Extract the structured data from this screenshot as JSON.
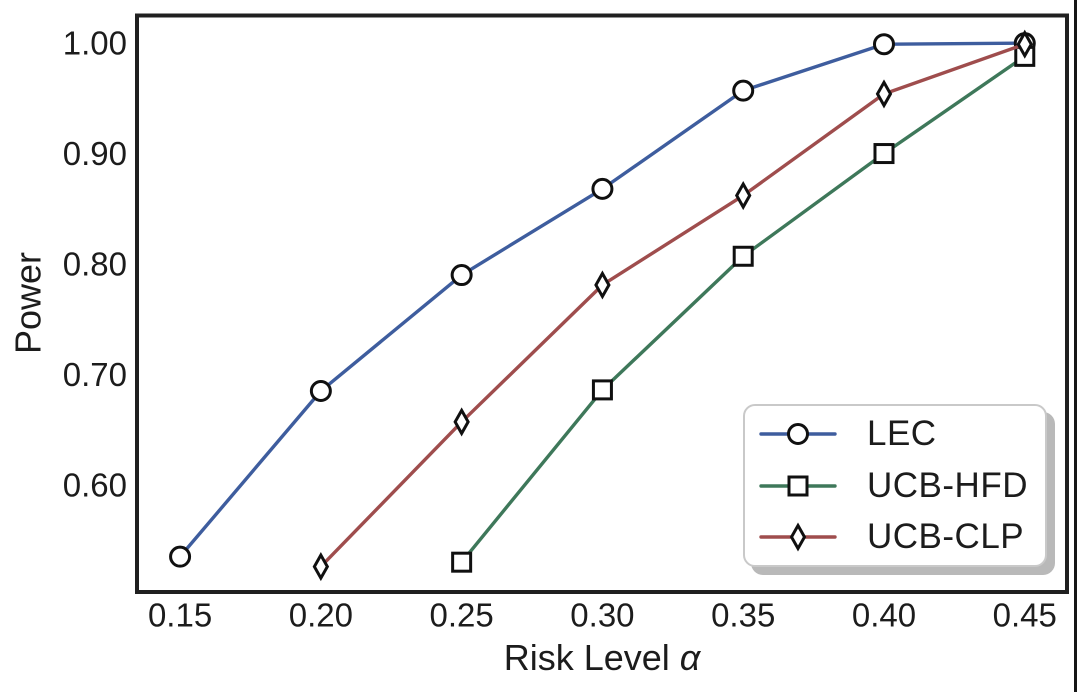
{
  "figure": {
    "background": "#ffffff",
    "frame_color": "#202020",
    "text_color": "#1c1c1c",
    "artifact_line_color": "#161616"
  },
  "chart_data": {
    "type": "line",
    "title": "",
    "xlabel": "Risk Level α",
    "xlabel_text": "Risk Level ",
    "xlabel_symbol": "α",
    "ylabel": "Power",
    "xlim": [
      0.1347,
      0.465
    ],
    "ylim": [
      0.503,
      1.025
    ],
    "grid": false,
    "x_ticks": [
      0.15,
      0.2,
      0.25,
      0.3,
      0.35,
      0.4,
      0.45
    ],
    "x_tick_labels": [
      "0.15",
      "0.20",
      "0.25",
      "0.30",
      "0.35",
      "0.40",
      "0.45"
    ],
    "y_ticks": [
      0.6,
      0.7,
      0.8,
      0.9,
      1.0
    ],
    "y_tick_labels": [
      "0.60",
      "0.70",
      "0.80",
      "0.90",
      "1.00"
    ],
    "marker_edge_color": "#101010",
    "marker_fill": "#ffffff",
    "legend": {
      "position": "lower-right",
      "fancybox": true,
      "shadow": true,
      "entries": [
        "LEC",
        "UCB-HFD",
        "UCB-CLP"
      ]
    },
    "series": [
      {
        "name": "LEC",
        "color": "#3E5D9E",
        "marker": "circle",
        "x": [
          0.15,
          0.2,
          0.25,
          0.3,
          0.35,
          0.4,
          0.45
        ],
        "y": [
          0.535,
          0.685,
          0.79,
          0.868,
          0.957,
          0.999,
          1.0
        ]
      },
      {
        "name": "UCB-HFD",
        "color": "#3E785A",
        "marker": "square",
        "x": [
          0.25,
          0.3,
          0.35,
          0.4,
          0.45
        ],
        "y": [
          0.53,
          0.686,
          0.807,
          0.9,
          0.988
        ]
      },
      {
        "name": "UCB-CLP",
        "color": "#9F4D4D",
        "marker": "diamond",
        "x": [
          0.2,
          0.25,
          0.3,
          0.35,
          0.4,
          0.45
        ],
        "y": [
          0.526,
          0.657,
          0.781,
          0.862,
          0.954,
          0.999
        ]
      }
    ]
  }
}
